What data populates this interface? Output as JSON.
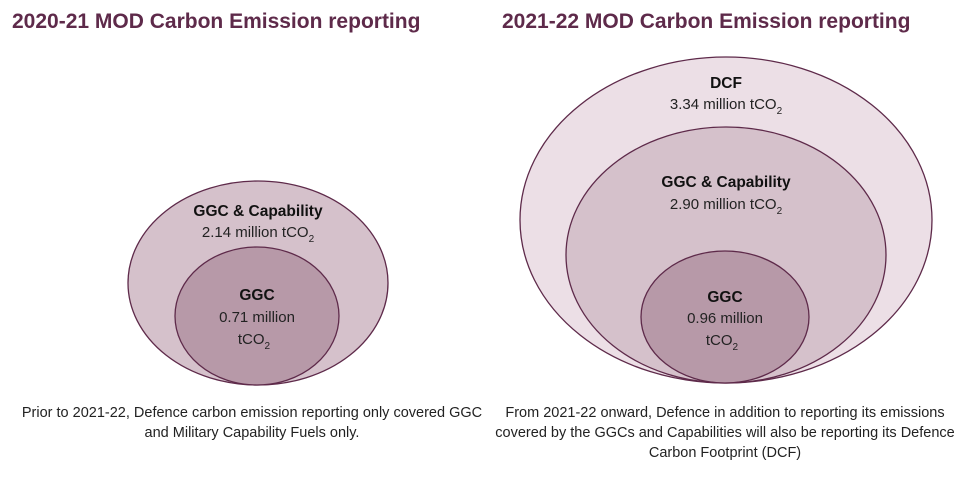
{
  "left_panel": {
    "title": "2020-21 MOD Carbon Emission reporting",
    "outer": {
      "name": "GGC & Capability",
      "value": "2.14 million tCO",
      "sub": "2"
    },
    "inner": {
      "name": "GGC",
      "value_line1": "0.71 million",
      "value_line2": "tCO",
      "sub": "2"
    },
    "caption": "Prior to 2021-22, Defence carbon emission reporting only covered GGC and Military Capability Fuels only."
  },
  "right_panel": {
    "title": "2021-22 MOD Carbon Emission reporting",
    "outer": {
      "name": "DCF",
      "value": "3.34 million tCO",
      "sub": "2"
    },
    "middle": {
      "name": "GGC & Capability",
      "value": "2.90 million tCO",
      "sub": "2"
    },
    "inner": {
      "name": "GGC",
      "value_line1": "0.96 million",
      "value_line2": "tCO",
      "sub": "2"
    },
    "caption": "From 2021-22 onward, Defence in addition to reporting its emissions covered by the GGCs and Capabilities will also be reporting its Defence Carbon Footprint (DCF)"
  },
  "colors": {
    "title": "#5e2a4a",
    "ellipse_stroke": "#5e2a4a",
    "dcf_fill": "#ecdfe6",
    "capability_fill": "#d5c1cb",
    "ggc_fill": "#b799a8"
  }
}
